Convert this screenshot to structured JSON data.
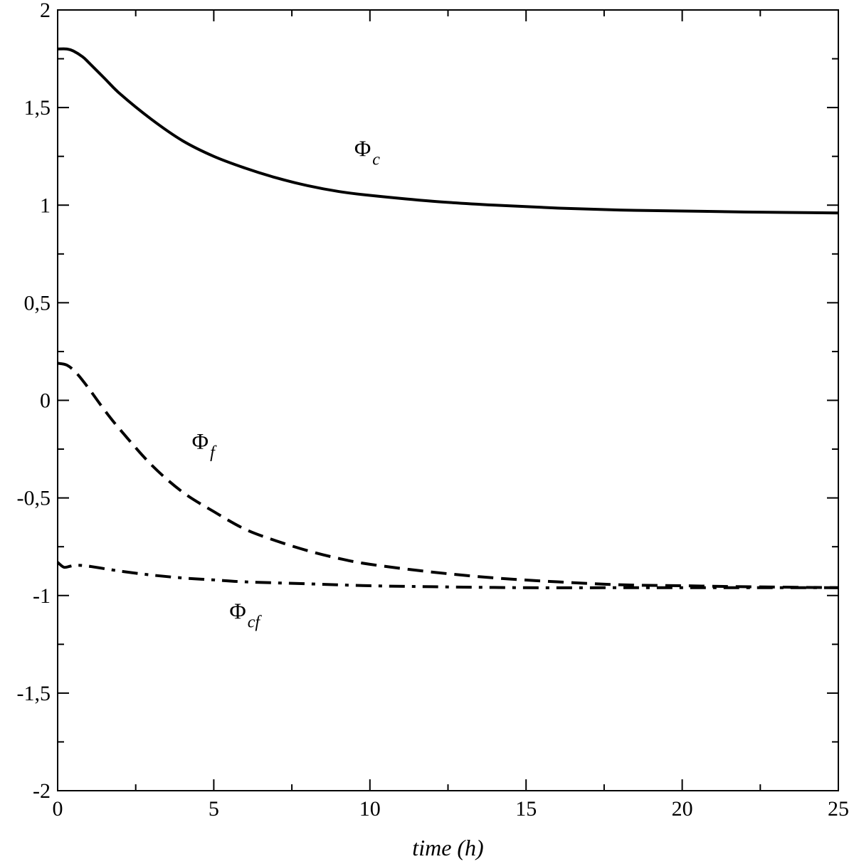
{
  "chart_data": {
    "type": "line",
    "title": "",
    "xlabel": "time (h)",
    "ylabel": "",
    "xlim": [
      0,
      25
    ],
    "ylim": [
      -2,
      2
    ],
    "xticks": [
      0,
      5,
      10,
      15,
      20,
      25
    ],
    "xtick_labels": [
      "0",
      "5",
      "10",
      "15",
      "20",
      "25"
    ],
    "yticks": [
      -2,
      -1.5,
      -1,
      -0.5,
      0,
      0.5,
      1,
      1.5,
      2
    ],
    "ytick_labels": [
      "-2",
      "-1,5",
      "-1",
      "-0,5",
      "0",
      "0,5",
      "1",
      "1,5",
      "2"
    ],
    "grid": false,
    "legend": "none",
    "series": [
      {
        "name": "Φc",
        "label_main": "Φ",
        "label_sub": "c",
        "style": "solid",
        "color": "#000000",
        "x": [
          0,
          0.3,
          0.5,
          0.8,
          1,
          1.5,
          2,
          3,
          4,
          5,
          6,
          7,
          8,
          9,
          10,
          12,
          14,
          16,
          18,
          20,
          22,
          25
        ],
        "y": [
          1.8,
          1.8,
          1.79,
          1.76,
          1.73,
          1.65,
          1.57,
          1.44,
          1.33,
          1.25,
          1.19,
          1.14,
          1.1,
          1.07,
          1.05,
          1.02,
          1.0,
          0.985,
          0.975,
          0.97,
          0.965,
          0.96
        ]
      },
      {
        "name": "Φf",
        "label_main": "Φ",
        "label_sub": "f",
        "style": "dashed",
        "color": "#000000",
        "x": [
          0,
          0.3,
          0.6,
          1,
          1.5,
          2,
          3,
          4,
          5,
          6,
          7,
          8,
          9,
          10,
          12,
          14,
          16,
          18,
          20,
          22,
          25
        ],
        "y": [
          0.19,
          0.18,
          0.14,
          0.06,
          -0.05,
          -0.15,
          -0.33,
          -0.47,
          -0.57,
          -0.66,
          -0.72,
          -0.77,
          -0.81,
          -0.84,
          -0.88,
          -0.91,
          -0.93,
          -0.945,
          -0.95,
          -0.955,
          -0.96
        ]
      },
      {
        "name": "Φcf",
        "label_main": "Φ",
        "label_sub": "cf",
        "style": "dashdot",
        "color": "#000000",
        "x": [
          0,
          0.2,
          0.4,
          0.6,
          1,
          2,
          3,
          4,
          5,
          6,
          8,
          10,
          12,
          15,
          18,
          20,
          22,
          25
        ],
        "y": [
          -0.83,
          -0.855,
          -0.85,
          -0.845,
          -0.85,
          -0.875,
          -0.895,
          -0.91,
          -0.92,
          -0.93,
          -0.94,
          -0.95,
          -0.955,
          -0.96,
          -0.96,
          -0.96,
          -0.96,
          -0.96
        ]
      }
    ],
    "annotations": [
      {
        "series": 0,
        "x": 9.5,
        "y": 1.25
      },
      {
        "series": 1,
        "x": 4.3,
        "y": -0.25
      },
      {
        "series": 2,
        "x": 5.5,
        "y": -1.12
      }
    ]
  }
}
